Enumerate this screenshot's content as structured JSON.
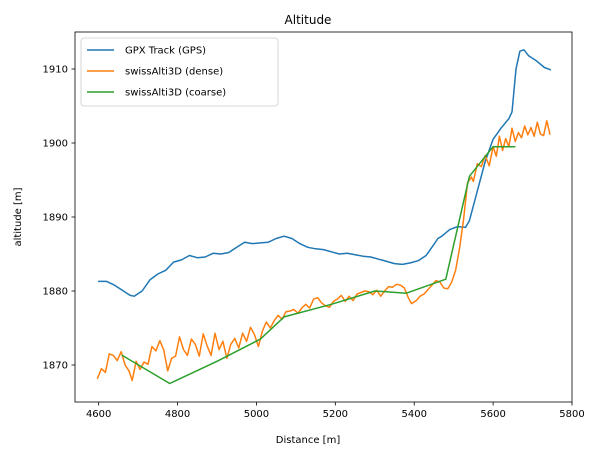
{
  "chart_data": {
    "type": "line",
    "title": "Altitude",
    "xlabel": "Distance [m]",
    "ylabel": "altitude [m]",
    "xlim": [
      4540,
      5800
    ],
    "ylim": [
      1865,
      1915
    ],
    "xticks": [
      4600,
      4800,
      5000,
      5200,
      5400,
      5600,
      5800
    ],
    "yticks": [
      1870,
      1880,
      1890,
      1900,
      1910
    ],
    "xtick_labels": [
      "4600",
      "4800",
      "5000",
      "5200",
      "5400",
      "5600",
      "5800"
    ],
    "ytick_labels": [
      "1870",
      "1880",
      "1890",
      "1900",
      "1910"
    ],
    "grid": false,
    "legend_position": "upper-left",
    "series": [
      {
        "name": "GPX Track (GPS)",
        "color": "#1f77b4",
        "points": [
          [
            4600,
            1881.3
          ],
          [
            4620,
            1881.3
          ],
          [
            4640,
            1880.8
          ],
          [
            4660,
            1880.1
          ],
          [
            4680,
            1879.4
          ],
          [
            4690,
            1879.3
          ],
          [
            4710,
            1880.0
          ],
          [
            4730,
            1881.5
          ],
          [
            4750,
            1882.3
          ],
          [
            4770,
            1882.8
          ],
          [
            4790,
            1883.9
          ],
          [
            4810,
            1884.2
          ],
          [
            4830,
            1884.8
          ],
          [
            4850,
            1884.5
          ],
          [
            4870,
            1884.6
          ],
          [
            4890,
            1885.1
          ],
          [
            4910,
            1885.0
          ],
          [
            4930,
            1885.2
          ],
          [
            4950,
            1885.9
          ],
          [
            4970,
            1886.6
          ],
          [
            4990,
            1886.4
          ],
          [
            5010,
            1886.5
          ],
          [
            5030,
            1886.6
          ],
          [
            5050,
            1887.1
          ],
          [
            5070,
            1887.4
          ],
          [
            5090,
            1887.1
          ],
          [
            5110,
            1886.4
          ],
          [
            5130,
            1885.9
          ],
          [
            5150,
            1885.7
          ],
          [
            5170,
            1885.6
          ],
          [
            5190,
            1885.3
          ],
          [
            5210,
            1885.0
          ],
          [
            5230,
            1885.1
          ],
          [
            5250,
            1884.9
          ],
          [
            5270,
            1884.7
          ],
          [
            5290,
            1884.6
          ],
          [
            5310,
            1884.3
          ],
          [
            5330,
            1884.0
          ],
          [
            5350,
            1883.7
          ],
          [
            5370,
            1883.6
          ],
          [
            5390,
            1883.8
          ],
          [
            5410,
            1884.1
          ],
          [
            5430,
            1884.8
          ],
          [
            5450,
            1886.3
          ],
          [
            5460,
            1887.1
          ],
          [
            5470,
            1887.4
          ],
          [
            5490,
            1888.3
          ],
          [
            5510,
            1888.7
          ],
          [
            5530,
            1888.6
          ],
          [
            5540,
            1889.5
          ],
          [
            5560,
            1893.5
          ],
          [
            5580,
            1897.5
          ],
          [
            5600,
            1900.5
          ],
          [
            5620,
            1902.0
          ],
          [
            5640,
            1903.3
          ],
          [
            5648,
            1904.2
          ],
          [
            5658,
            1910.0
          ],
          [
            5668,
            1912.4
          ],
          [
            5678,
            1912.6
          ],
          [
            5690,
            1911.8
          ],
          [
            5710,
            1911.1
          ],
          [
            5730,
            1910.2
          ],
          [
            5745,
            1909.9
          ]
        ]
      },
      {
        "name": "swissAlti3D (dense)",
        "color": "#ff7f0e",
        "points": [
          [
            4597,
            1868.2
          ],
          [
            4607,
            1869.5
          ],
          [
            4617,
            1869.0
          ],
          [
            4627,
            1871.5
          ],
          [
            4637,
            1871.3
          ],
          [
            4647,
            1870.6
          ],
          [
            4657,
            1871.8
          ],
          [
            4667,
            1870.0
          ],
          [
            4677,
            1869.2
          ],
          [
            4685,
            1867.9
          ],
          [
            4695,
            1870.5
          ],
          [
            4705,
            1869.4
          ],
          [
            4715,
            1870.4
          ],
          [
            4725,
            1870.1
          ],
          [
            4735,
            1872.5
          ],
          [
            4745,
            1871.9
          ],
          [
            4755,
            1873.3
          ],
          [
            4765,
            1872.0
          ],
          [
            4775,
            1869.2
          ],
          [
            4785,
            1870.9
          ],
          [
            4795,
            1871.2
          ],
          [
            4805,
            1873.8
          ],
          [
            4815,
            1872.1
          ],
          [
            4825,
            1871.3
          ],
          [
            4835,
            1873.5
          ],
          [
            4845,
            1872.8
          ],
          [
            4855,
            1871.2
          ],
          [
            4865,
            1874.2
          ],
          [
            4875,
            1872.6
          ],
          [
            4885,
            1871.3
          ],
          [
            4895,
            1874.3
          ],
          [
            4905,
            1872.1
          ],
          [
            4915,
            1873.2
          ],
          [
            4925,
            1870.9
          ],
          [
            4935,
            1872.8
          ],
          [
            4945,
            1873.6
          ],
          [
            4955,
            1872.3
          ],
          [
            4965,
            1874.3
          ],
          [
            4975,
            1873.2
          ],
          [
            4985,
            1875.1
          ],
          [
            4995,
            1874.1
          ],
          [
            5005,
            1872.5
          ],
          [
            5015,
            1874.6
          ],
          [
            5025,
            1875.8
          ],
          [
            5035,
            1875.0
          ],
          [
            5045,
            1876.0
          ],
          [
            5055,
            1876.7
          ],
          [
            5065,
            1876.2
          ],
          [
            5075,
            1877.2
          ],
          [
            5085,
            1877.3
          ],
          [
            5095,
            1877.5
          ],
          [
            5105,
            1877.0
          ],
          [
            5115,
            1877.7
          ],
          [
            5125,
            1878.2
          ],
          [
            5135,
            1877.7
          ],
          [
            5145,
            1878.9
          ],
          [
            5155,
            1879.1
          ],
          [
            5165,
            1878.4
          ],
          [
            5175,
            1878.0
          ],
          [
            5185,
            1877.8
          ],
          [
            5195,
            1878.6
          ],
          [
            5205,
            1878.9
          ],
          [
            5215,
            1879.4
          ],
          [
            5225,
            1878.6
          ],
          [
            5235,
            1879.3
          ],
          [
            5245,
            1878.7
          ],
          [
            5255,
            1879.6
          ],
          [
            5265,
            1879.8
          ],
          [
            5275,
            1880.0
          ],
          [
            5285,
            1879.9
          ],
          [
            5295,
            1879.5
          ],
          [
            5305,
            1880.1
          ],
          [
            5315,
            1879.3
          ],
          [
            5325,
            1880.0
          ],
          [
            5335,
            1880.6
          ],
          [
            5345,
            1880.5
          ],
          [
            5355,
            1880.9
          ],
          [
            5365,
            1880.8
          ],
          [
            5375,
            1880.4
          ],
          [
            5385,
            1879.1
          ],
          [
            5393,
            1878.3
          ],
          [
            5405,
            1878.7
          ],
          [
            5415,
            1879.3
          ],
          [
            5425,
            1879.6
          ],
          [
            5435,
            1880.2
          ],
          [
            5445,
            1880.8
          ],
          [
            5455,
            1881.4
          ],
          [
            5465,
            1881.2
          ],
          [
            5475,
            1880.4
          ],
          [
            5485,
            1880.3
          ],
          [
            5495,
            1881.2
          ],
          [
            5505,
            1882.8
          ],
          [
            5515,
            1885.8
          ],
          [
            5525,
            1889.6
          ],
          [
            5535,
            1894.6
          ],
          [
            5545,
            1895.4
          ],
          [
            5550,
            1894.8
          ],
          [
            5560,
            1897.2
          ],
          [
            5570,
            1896.8
          ],
          [
            5580,
            1898.3
          ],
          [
            5590,
            1896.9
          ],
          [
            5600,
            1899.5
          ],
          [
            5608,
            1898.2
          ],
          [
            5616,
            1900.9
          ],
          [
            5624,
            1899.0
          ],
          [
            5632,
            1900.6
          ],
          [
            5640,
            1899.5
          ],
          [
            5648,
            1902.0
          ],
          [
            5656,
            1900.2
          ],
          [
            5664,
            1901.4
          ],
          [
            5672,
            1900.7
          ],
          [
            5680,
            1902.3
          ],
          [
            5688,
            1901.1
          ],
          [
            5696,
            1902.1
          ],
          [
            5704,
            1900.9
          ],
          [
            5712,
            1902.8
          ],
          [
            5720,
            1901.2
          ],
          [
            5728,
            1901.0
          ],
          [
            5736,
            1903.0
          ],
          [
            5744,
            1901.2
          ]
        ]
      },
      {
        "name": "swissAlti3D (coarse)",
        "color": "#2ca02c",
        "points": [
          [
            4660,
            1871.3
          ],
          [
            4780,
            1867.5
          ],
          [
            4900,
            1870.5
          ],
          [
            5010,
            1873.5
          ],
          [
            5070,
            1876.5
          ],
          [
            5190,
            1878.2
          ],
          [
            5300,
            1880.0
          ],
          [
            5380,
            1879.7
          ],
          [
            5480,
            1881.6
          ],
          [
            5540,
            1895.5
          ],
          [
            5600,
            1899.5
          ],
          [
            5655,
            1899.5
          ]
        ]
      }
    ]
  }
}
